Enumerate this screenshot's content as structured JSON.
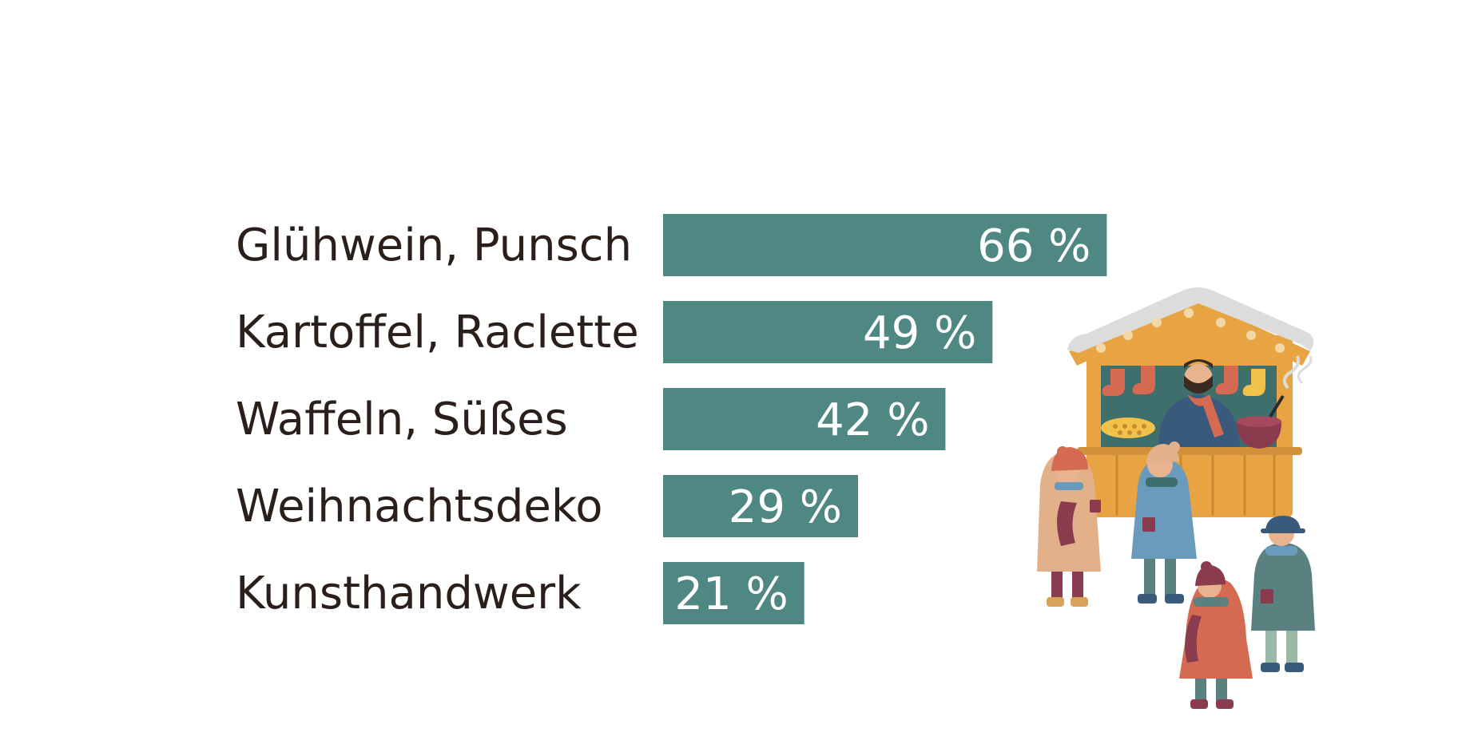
{
  "chart_data": {
    "type": "bar",
    "orientation": "horizontal",
    "title": "",
    "xlabel": "",
    "ylabel": "",
    "value_suffix": " %",
    "xlim": [
      0,
      100
    ],
    "grid": false,
    "categories": [
      "Glühwein, Punsch",
      "Kartoffel, Raclette",
      "Waffeln, Süßes",
      "Weihnachtsdeko",
      "Kunsthandwerk"
    ],
    "values": [
      66,
      49,
      42,
      29,
      21
    ]
  },
  "colors": {
    "bar": "#4f8782",
    "label_text": "#2a1f1a",
    "value_text": "#ffffff",
    "hut_wood": "#e8a443",
    "hut_dark": "#c98a33",
    "snow": "#dcdcdc",
    "coat_blue": "#6a9bbd",
    "coat_teal": "#5b8080",
    "coat_red": "#d56a52",
    "coat_beige": "#e2b18a",
    "plum": "#8a3c4e",
    "navy": "#3a5a7c"
  },
  "illustration": {
    "name": "christmas-market-stall-icon"
  }
}
